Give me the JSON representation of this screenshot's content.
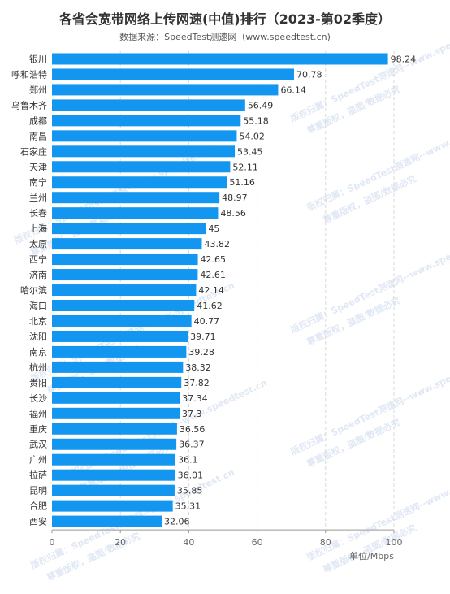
{
  "title": "各省会宽带网络上传网速(中值)排行（2023-第02季度）",
  "subtitle": "数据来源：SpeedTest测速网（www.speedtest.cn)",
  "watermark": {
    "line1": "版权归属：SpeedTest测速网--www.speedtest.cn",
    "line2": "尊重版权，盗图/数据必究"
  },
  "colors": {
    "bar": "#1296f0"
  },
  "chart_data": {
    "type": "bar",
    "orientation": "horizontal",
    "title": "各省会宽带网络上传网速(中值)排行（2023-第02季度）",
    "subtitle": "数据来源：SpeedTest测速网（www.speedtest.cn)",
    "xlabel": "单位/Mbps",
    "ylabel": "",
    "xlim": [
      0,
      100
    ],
    "xticks": [
      0,
      20,
      40,
      60,
      80,
      100
    ],
    "grid": true,
    "categories": [
      "银川",
      "呼和浩特",
      "郑州",
      "乌鲁木齐",
      "成都",
      "南昌",
      "石家庄",
      "天津",
      "南宁",
      "兰州",
      "长春",
      "上海",
      "太原",
      "西宁",
      "济南",
      "哈尔滨",
      "海口",
      "北京",
      "沈阳",
      "南京",
      "杭州",
      "贵阳",
      "长沙",
      "福州",
      "重庆",
      "武汉",
      "广州",
      "拉萨",
      "昆明",
      "合肥",
      "西安"
    ],
    "values": [
      98.24,
      70.78,
      66.14,
      56.49,
      55.18,
      54.02,
      53.45,
      52.11,
      51.16,
      48.97,
      48.56,
      45,
      43.82,
      42.65,
      42.61,
      42.14,
      41.62,
      40.77,
      39.71,
      39.28,
      38.32,
      37.82,
      37.34,
      37.3,
      36.56,
      36.37,
      36.1,
      36.01,
      35.85,
      35.31,
      32.06
    ]
  }
}
